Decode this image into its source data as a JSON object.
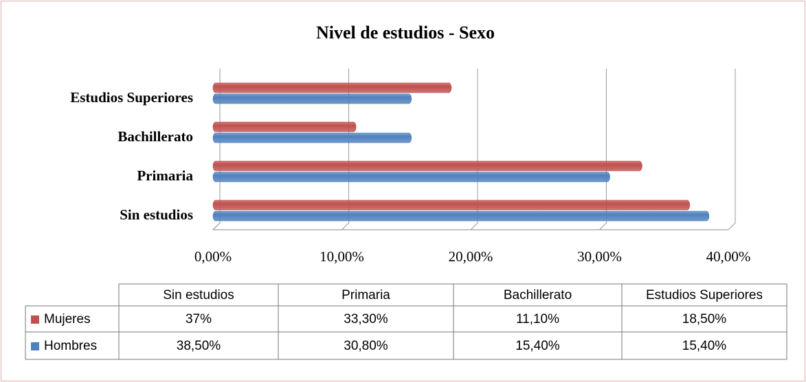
{
  "chart_data": {
    "type": "bar",
    "orientation": "horizontal",
    "title": "Nivel de estudios - Sexo",
    "categories": [
      "Sin estudios",
      "Primaria",
      "Bachillerato",
      "Estudios Superiores"
    ],
    "series": [
      {
        "name": "Mujeres",
        "color": "#c0504d",
        "values": [
          37,
          33.3,
          11.1,
          18.5
        ],
        "value_labels": [
          "37%",
          "33,30%",
          "11,10%",
          "18,50%"
        ]
      },
      {
        "name": "Hombres",
        "color": "#4f81bd",
        "values": [
          38.5,
          30.8,
          15.4,
          15.4
        ],
        "value_labels": [
          "38,50%",
          "30,80%",
          "15,40%",
          "15,40%"
        ]
      }
    ],
    "xlim": [
      0,
      40
    ],
    "xticks": [
      {
        "value": 0,
        "label": "0,00%"
      },
      {
        "value": 10,
        "label": "10,00%"
      },
      {
        "value": 20,
        "label": "20,00%"
      },
      {
        "value": 30,
        "label": "30,00%"
      },
      {
        "value": 40,
        "label": "40,00%"
      }
    ],
    "grid": true,
    "data_table": true
  }
}
